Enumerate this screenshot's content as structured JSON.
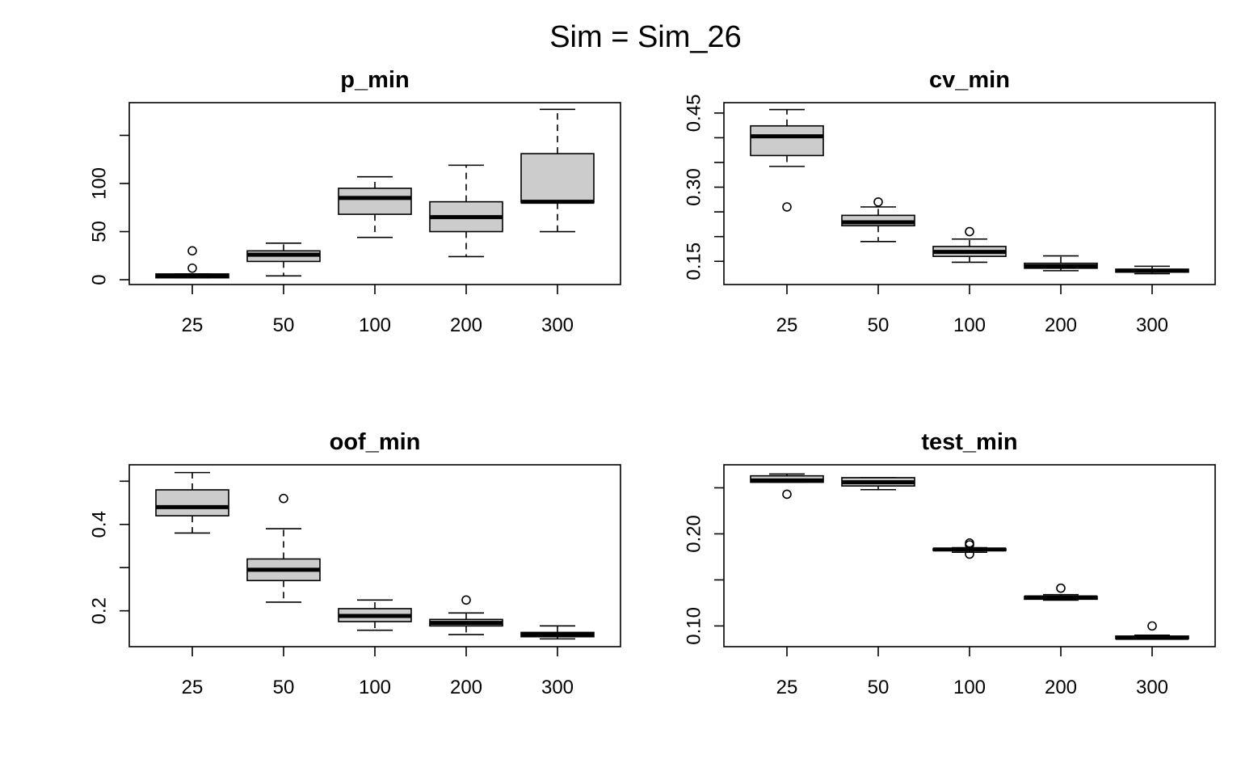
{
  "title": "Sim = Sim_26",
  "colors": {
    "box_fill": "#cccccc",
    "stroke": "#000000",
    "background": "#ffffff"
  },
  "chart_data": [
    {
      "type": "box",
      "title": "p_min",
      "categories": [
        "25",
        "50",
        "100",
        "200",
        "300"
      ],
      "ylim": [
        -5,
        184
      ],
      "yticks": [
        0,
        50,
        100,
        150
      ],
      "ytick_labels": [
        "0",
        "50",
        "100",
        ""
      ],
      "boxes": [
        {
          "min": 2,
          "q1": 2,
          "median": 4,
          "q3": 6,
          "max": 6,
          "outliers": [
            12,
            30
          ]
        },
        {
          "min": 4,
          "q1": 19,
          "median": 26,
          "q3": 30,
          "max": 38,
          "outliers": []
        },
        {
          "min": 44,
          "q1": 68,
          "median": 85,
          "q3": 95,
          "max": 107,
          "outliers": []
        },
        {
          "min": 24,
          "q1": 50,
          "median": 65,
          "q3": 81,
          "max": 119,
          "outliers": []
        },
        {
          "min": 50,
          "q1": 80,
          "median": 81,
          "q3": 131,
          "max": 177,
          "outliers": []
        }
      ]
    },
    {
      "type": "box",
      "title": "cv_min",
      "categories": [
        "25",
        "50",
        "100",
        "200",
        "300"
      ],
      "ylim": [
        0.103,
        0.471
      ],
      "yticks": [
        0.15,
        0.2,
        0.25,
        0.3,
        0.35,
        0.4,
        0.45
      ],
      "ytick_labels": [
        "0.15",
        "",
        "",
        "0.30",
        "",
        "",
        "0.45"
      ],
      "boxes": [
        {
          "min": 0.342,
          "q1": 0.364,
          "median": 0.403,
          "q3": 0.424,
          "max": 0.457,
          "outliers": [
            0.26
          ]
        },
        {
          "min": 0.19,
          "q1": 0.222,
          "median": 0.229,
          "q3": 0.243,
          "max": 0.26,
          "outliers": [
            0.27
          ]
        },
        {
          "min": 0.148,
          "q1": 0.16,
          "median": 0.169,
          "q3": 0.18,
          "max": 0.195,
          "outliers": [
            0.21
          ]
        },
        {
          "min": 0.131,
          "q1": 0.136,
          "median": 0.14,
          "q3": 0.146,
          "max": 0.161,
          "outliers": []
        },
        {
          "min": 0.125,
          "q1": 0.128,
          "median": 0.131,
          "q3": 0.134,
          "max": 0.14,
          "outliers": []
        }
      ]
    },
    {
      "type": "box",
      "title": "oof_min",
      "categories": [
        "25",
        "50",
        "100",
        "200",
        "300"
      ],
      "ylim": [
        0.117,
        0.538
      ],
      "yticks": [
        0.2,
        0.3,
        0.4,
        0.5
      ],
      "ytick_labels": [
        "0.2",
        "",
        "0.4",
        ""
      ],
      "boxes": [
        {
          "min": 0.38,
          "q1": 0.42,
          "median": 0.44,
          "q3": 0.48,
          "max": 0.52,
          "outliers": []
        },
        {
          "min": 0.22,
          "q1": 0.27,
          "median": 0.295,
          "q3": 0.32,
          "max": 0.39,
          "outliers": [
            0.46
          ]
        },
        {
          "min": 0.155,
          "q1": 0.175,
          "median": 0.188,
          "q3": 0.205,
          "max": 0.225,
          "outliers": []
        },
        {
          "min": 0.145,
          "q1": 0.165,
          "median": 0.172,
          "q3": 0.18,
          "max": 0.195,
          "outliers": [
            0.225
          ]
        },
        {
          "min": 0.135,
          "q1": 0.14,
          "median": 0.145,
          "q3": 0.15,
          "max": 0.165,
          "outliers": []
        }
      ]
    },
    {
      "type": "box",
      "title": "test_min",
      "categories": [
        "25",
        "50",
        "100",
        "200",
        "300"
      ],
      "ylim": [
        0.0775,
        0.275
      ],
      "yticks": [
        0.1,
        0.15,
        0.2,
        0.25
      ],
      "ytick_labels": [
        "0.10",
        "",
        "0.20",
        ""
      ],
      "boxes": [
        {
          "min": 0.256,
          "q1": 0.256,
          "median": 0.258,
          "q3": 0.263,
          "max": 0.265,
          "outliers": [
            0.243
          ]
        },
        {
          "min": 0.248,
          "q1": 0.252,
          "median": 0.256,
          "q3": 0.261,
          "max": 0.261,
          "outliers": []
        },
        {
          "min": 0.18,
          "q1": 0.182,
          "median": 0.183,
          "q3": 0.184,
          "max": 0.185,
          "outliers": [
            0.178,
            0.188,
            0.19
          ]
        },
        {
          "min": 0.128,
          "q1": 0.129,
          "median": 0.131,
          "q3": 0.132,
          "max": 0.134,
          "outliers": [
            0.141
          ]
        },
        {
          "min": 0.086,
          "q1": 0.086,
          "median": 0.087,
          "q3": 0.089,
          "max": 0.09,
          "outliers": [
            0.1
          ]
        }
      ]
    }
  ]
}
